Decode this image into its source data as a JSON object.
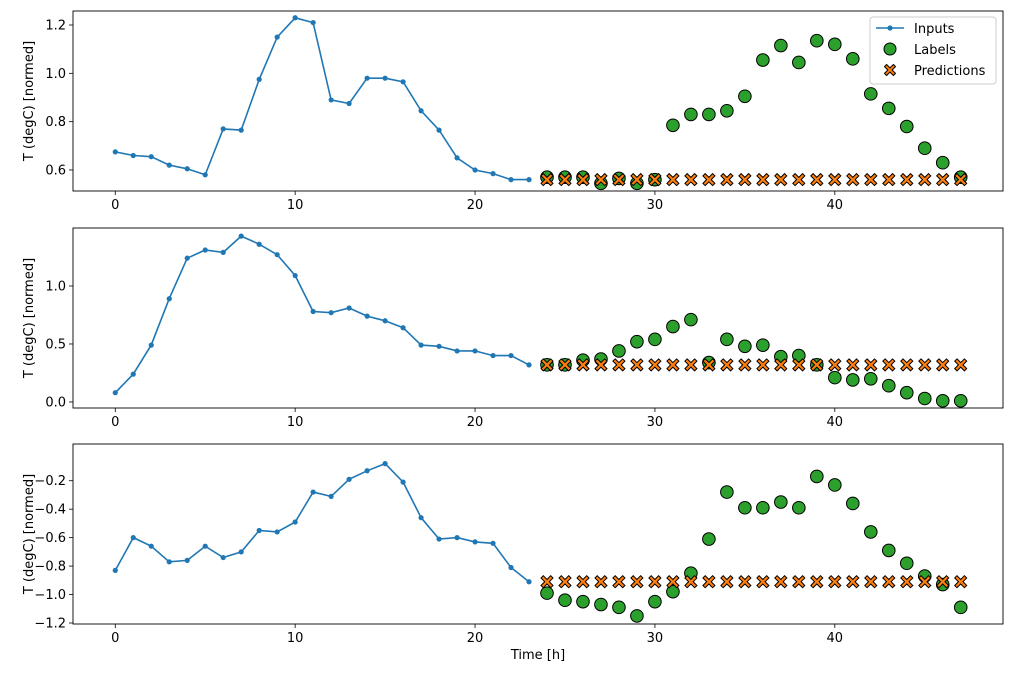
{
  "chart_data": [
    {
      "type": "line+scatter",
      "ylabel": "T (degC) [normed]",
      "xlabel": "",
      "xlim": [
        -2.35,
        49.35
      ],
      "ylim": [
        0.513,
        1.258
      ],
      "xticks": [
        0,
        10,
        20,
        30,
        40
      ],
      "yticks": [
        0.6,
        0.8,
        1.0,
        1.2
      ],
      "ytick_labels": [
        "0.6",
        "0.8",
        "1.0",
        "1.2"
      ],
      "legend": {
        "placement": "top-right",
        "entries": [
          "Inputs",
          "Labels",
          "Predictions"
        ]
      },
      "inputs": {
        "x_start": 0,
        "values": [
          0.675,
          0.66,
          0.655,
          0.62,
          0.605,
          0.58,
          0.77,
          0.765,
          0.975,
          1.15,
          1.23,
          1.21,
          0.89,
          0.875,
          0.98,
          0.98,
          0.965,
          0.845,
          0.765,
          0.65,
          0.6,
          0.585,
          0.56,
          0.56
        ]
      },
      "labels": {
        "x_start": 24,
        "values": [
          0.57,
          0.57,
          0.57,
          0.545,
          0.565,
          0.545,
          0.56,
          0.785,
          0.83,
          0.83,
          0.845,
          0.905,
          1.055,
          1.115,
          1.045,
          1.135,
          1.12,
          1.06,
          0.915,
          0.855,
          0.78,
          0.69,
          0.63,
          0.57
        ]
      },
      "predictions": {
        "x_start": 24,
        "values": [
          0.56,
          0.56,
          0.56,
          0.56,
          0.56,
          0.56,
          0.56,
          0.56,
          0.56,
          0.56,
          0.56,
          0.56,
          0.56,
          0.56,
          0.56,
          0.56,
          0.56,
          0.56,
          0.56,
          0.56,
          0.56,
          0.56,
          0.56,
          0.56
        ]
      }
    },
    {
      "type": "line+scatter",
      "ylabel": "T (degC) [normed]",
      "xlabel": "",
      "xlim": [
        -2.35,
        49.35
      ],
      "ylim": [
        -0.052,
        1.5
      ],
      "xticks": [
        0,
        10,
        20,
        30,
        40
      ],
      "yticks": [
        0.0,
        0.5,
        1.0
      ],
      "ytick_labels": [
        "0.0",
        "0.5",
        "1.0"
      ],
      "inputs": {
        "x_start": 0,
        "values": [
          0.08,
          0.24,
          0.49,
          0.89,
          1.24,
          1.31,
          1.29,
          1.43,
          1.36,
          1.27,
          1.09,
          0.78,
          0.77,
          0.81,
          0.74,
          0.7,
          0.64,
          0.49,
          0.48,
          0.44,
          0.44,
          0.4,
          0.4,
          0.32
        ]
      },
      "labels": {
        "x_start": 24,
        "values": [
          0.32,
          0.32,
          0.36,
          0.37,
          0.44,
          0.52,
          0.54,
          0.65,
          0.71,
          0.34,
          0.54,
          0.48,
          0.49,
          0.39,
          0.4,
          0.32,
          0.21,
          0.19,
          0.2,
          0.14,
          0.08,
          0.03,
          0.01,
          0.01
        ]
      },
      "predictions": {
        "x_start": 24,
        "values": [
          0.32,
          0.32,
          0.32,
          0.32,
          0.32,
          0.32,
          0.32,
          0.32,
          0.32,
          0.32,
          0.32,
          0.32,
          0.32,
          0.32,
          0.32,
          0.32,
          0.32,
          0.32,
          0.32,
          0.32,
          0.32,
          0.32,
          0.32,
          0.32
        ]
      }
    },
    {
      "type": "line+scatter",
      "ylabel": "T (degC) [normed]",
      "xlabel": "Time [h]",
      "xlim": [
        -2.35,
        49.35
      ],
      "ylim": [
        -1.207,
        0.058
      ],
      "xticks": [
        0,
        10,
        20,
        30,
        40
      ],
      "yticks": [
        -1.2,
        -1.0,
        -0.8,
        -0.6,
        -0.4,
        -0.2
      ],
      "ytick_labels": [
        "−1.2",
        "−1.0",
        "−0.8",
        "−0.6",
        "−0.4",
        "−0.2"
      ],
      "inputs": {
        "x_start": 0,
        "values": [
          -0.83,
          -0.6,
          -0.66,
          -0.77,
          -0.76,
          -0.66,
          -0.74,
          -0.7,
          -0.55,
          -0.56,
          -0.49,
          -0.28,
          -0.31,
          -0.19,
          -0.13,
          -0.08,
          -0.21,
          -0.46,
          -0.61,
          -0.6,
          -0.63,
          -0.64,
          -0.81,
          -0.91
        ]
      },
      "labels": {
        "x_start": 24,
        "values": [
          -0.99,
          -1.04,
          -1.05,
          -1.07,
          -1.09,
          -1.15,
          -1.05,
          -0.98,
          -0.85,
          -0.61,
          -0.28,
          -0.39,
          -0.39,
          -0.35,
          -0.39,
          -0.17,
          -0.23,
          -0.36,
          -0.56,
          -0.69,
          -0.78,
          -0.87,
          -0.93,
          -1.09
        ]
      },
      "predictions": {
        "x_start": 24,
        "values": [
          -0.91,
          -0.91,
          -0.91,
          -0.91,
          -0.91,
          -0.91,
          -0.91,
          -0.91,
          -0.91,
          -0.91,
          -0.91,
          -0.91,
          -0.91,
          -0.91,
          -0.91,
          -0.91,
          -0.91,
          -0.91,
          -0.91,
          -0.91,
          -0.91,
          -0.91,
          -0.91,
          -0.91
        ]
      }
    }
  ],
  "colors": {
    "inputs": "#1f77b4",
    "labels": "#2ca02c",
    "predictions": "#ff7f0e",
    "edge": "#000000"
  }
}
